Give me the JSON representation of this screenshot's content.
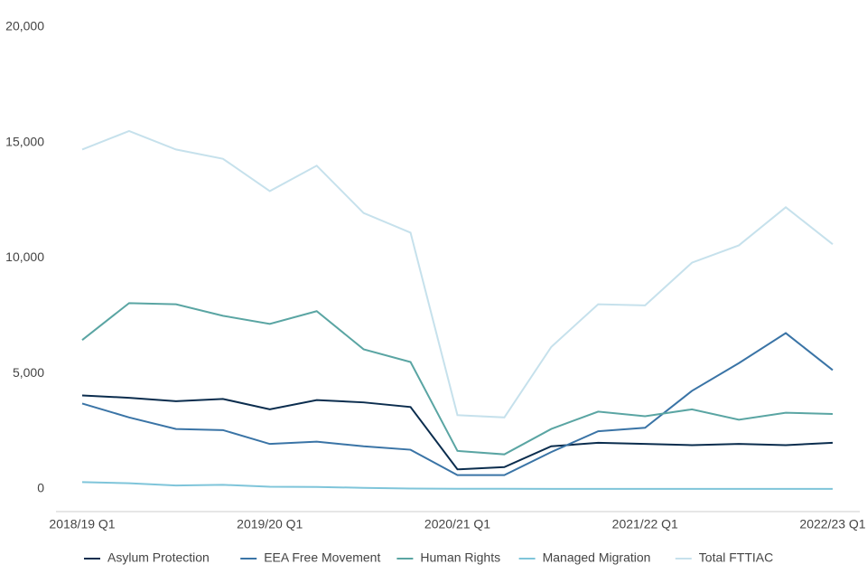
{
  "chart_data": {
    "type": "line",
    "categories": [
      "2018/19 Q1",
      null,
      null,
      null,
      "2019/20 Q1",
      null,
      null,
      null,
      "2020/21 Q1",
      null,
      null,
      null,
      "2021/22 Q1",
      null,
      null,
      null,
      "2022/23 Q1"
    ],
    "series": [
      {
        "name": "Asylum Protection",
        "color": "#0b2d4e",
        "values": [
          4050,
          3950,
          3800,
          3900,
          3450,
          3850,
          3750,
          3550,
          850,
          950,
          1850,
          2000,
          1950,
          1900,
          1950,
          1900,
          2000
        ]
      },
      {
        "name": "EEA Free Movement",
        "color": "#3a74a6",
        "values": [
          3700,
          3100,
          2600,
          2550,
          1950,
          2050,
          1850,
          1700,
          600,
          600,
          1600,
          2500,
          2650,
          4250,
          5450,
          6750,
          5150
        ]
      },
      {
        "name": "Human Rights",
        "color": "#5aa5a3",
        "values": [
          6450,
          8050,
          8000,
          7500,
          7150,
          7700,
          6050,
          5500,
          1650,
          1500,
          2600,
          3350,
          3150,
          3450,
          3000,
          3300,
          3250
        ]
      },
      {
        "name": "Managed Migration",
        "color": "#7fc5da",
        "values": [
          300,
          250,
          150,
          180,
          100,
          90,
          50,
          20,
          10,
          10,
          5,
          5,
          5,
          5,
          5,
          5,
          5
        ]
      },
      {
        "name": "Total FTTIAC",
        "color": "#c6e1ec",
        "values": [
          14700,
          15500,
          14700,
          14300,
          12900,
          14000,
          11950,
          11100,
          3200,
          3100,
          6150,
          8000,
          7950,
          9800,
          10550,
          12200,
          10600
        ]
      }
    ],
    "ylim": [
      0,
      20000
    ],
    "yticks": [
      0,
      {
        "value": 5000,
        "label": "5,000"
      },
      {
        "value": 10000,
        "label": "10,000"
      },
      {
        "value": 15000,
        "label": "15,000"
      },
      {
        "value": 20000,
        "label": "20,000"
      }
    ],
    "grid": false,
    "legend": "bottom"
  }
}
